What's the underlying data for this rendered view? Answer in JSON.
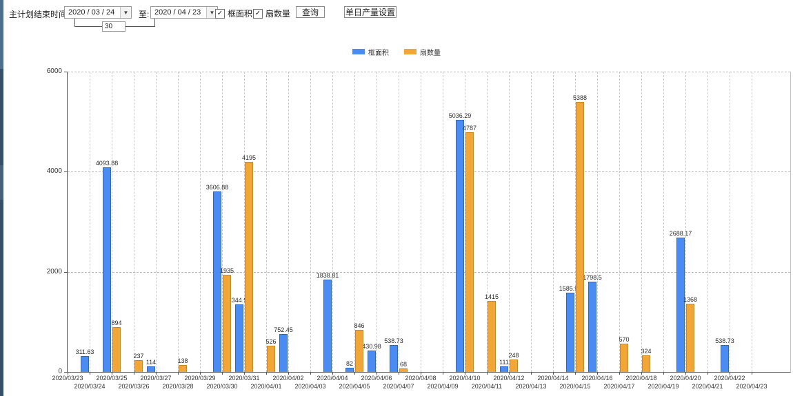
{
  "toolbar": {
    "plan_end_label": "主计划结束时间:",
    "date_from": "2020 / 03 / 24",
    "to_label": "至:",
    "date_to": "2020 / 04 / 23",
    "interval_days": "30",
    "checkboxes": [
      {
        "label": "框面积",
        "checked": true
      },
      {
        "label": "扇数量",
        "checked": true
      }
    ],
    "query_button": "查询",
    "daily_output_button": "单日产量设置"
  },
  "legend": {
    "items": [
      {
        "label": "框面积",
        "color": "#4a8cf2"
      },
      {
        "label": "扇数量",
        "color": "#f2a637"
      }
    ]
  },
  "chart_data": {
    "type": "bar",
    "title": "",
    "xlabel": "",
    "ylabel": "",
    "ylim": [
      0,
      6000
    ],
    "yticks": [
      0,
      2000,
      4000,
      6000
    ],
    "grid": true,
    "legend_position": "top-center",
    "categories": [
      "2020/03/23",
      "2020/03/24",
      "2020/03/25",
      "2020/03/26",
      "2020/03/27",
      "2020/03/28",
      "2020/03/29",
      "2020/03/30",
      "2020/03/31",
      "2020/04/01",
      "2020/04/02",
      "2020/04/03",
      "2020/04/04",
      "2020/04/05",
      "2020/04/06",
      "2020/04/07",
      "2020/04/08",
      "2020/04/09",
      "2020/04/10",
      "2020/04/11",
      "2020/04/12",
      "2020/04/13",
      "2020/04/14",
      "2020/04/15",
      "2020/04/16",
      "2020/04/17",
      "2020/04/18",
      "2020/04/19",
      "2020/04/20",
      "2020/04/21",
      "2020/04/22",
      "2020/04/23"
    ],
    "series": [
      {
        "name": "框面积",
        "color": "#4a8cf2",
        "values": [
          null,
          311.63,
          4093.88,
          null,
          114,
          null,
          null,
          3606.88,
          1344.95,
          null,
          752.45,
          null,
          1838.81,
          82,
          430.98,
          538.73,
          null,
          null,
          5036.29,
          null,
          111,
          null,
          null,
          1585.96,
          1798.5,
          null,
          null,
          null,
          2688.17,
          null,
          538.73,
          null
        ]
      },
      {
        "name": "扇数量",
        "color": "#f2a637",
        "values": [
          null,
          null,
          894,
          237,
          null,
          138,
          null,
          1935,
          4195,
          526,
          null,
          null,
          null,
          846,
          null,
          68,
          null,
          null,
          4787,
          1415,
          248,
          null,
          null,
          5388,
          null,
          570,
          324,
          null,
          1368,
          null,
          null,
          null
        ]
      }
    ]
  }
}
